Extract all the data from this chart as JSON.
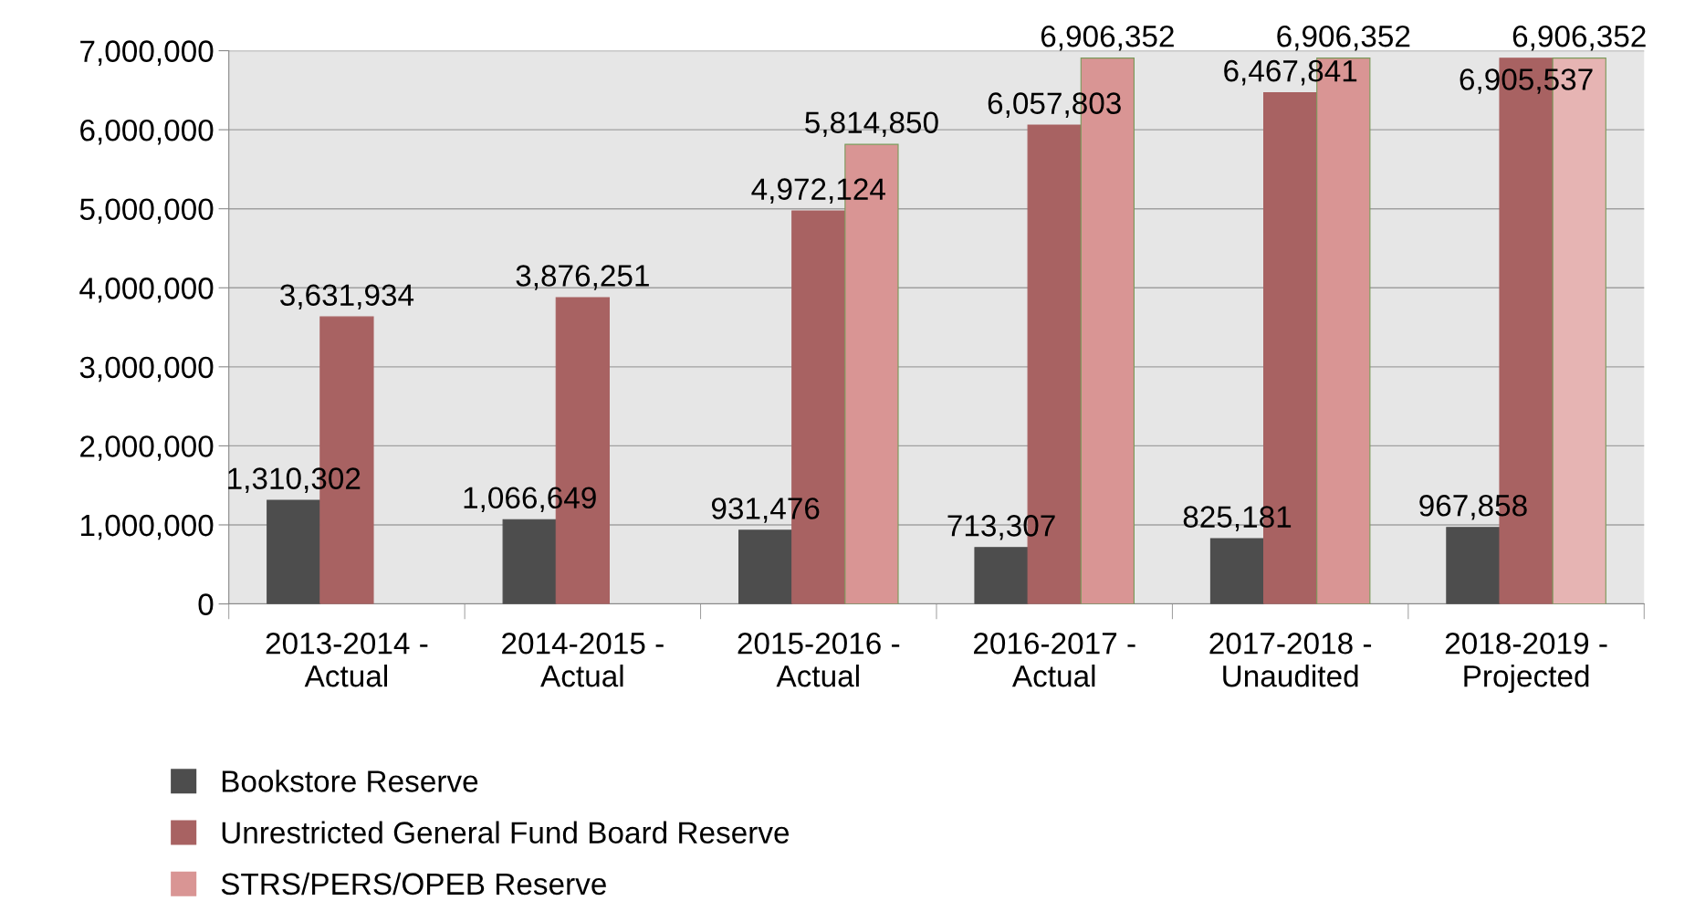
{
  "chart_data": {
    "type": "bar",
    "categories": [
      "2013-2014 -\nActual",
      "2014-2015 -\nActual",
      "2015-2016 -\nActual",
      "2016-2017 -\nActual",
      "2017-2018 -\nUnaudited",
      "2018-2019 -\nProjected"
    ],
    "series": [
      {
        "name": "Bookstore Reserve",
        "color": "#4d4d4d",
        "values": [
          1310302,
          1066649,
          931476,
          713307,
          825181,
          967858
        ],
        "value_labels": [
          "1,310,302",
          "1,066,649",
          "931,476",
          "713,307",
          "825,181",
          "967,858"
        ]
      },
      {
        "name": "Unrestricted General Fund Board Reserve",
        "color": "#a86262",
        "values": [
          3631934,
          3876251,
          4972124,
          6057803,
          6467841,
          6905537
        ],
        "value_labels": [
          "3,631,934",
          "3,876,251",
          "4,972,124",
          "6,057,803",
          "6,467,841",
          "6,905,537"
        ]
      },
      {
        "name": "STRS/PERS/OPEB Reserve",
        "color": "#d99594",
        "colors": [
          "#d99594",
          "#d99594",
          "#d99594",
          "#d99594",
          "#d99594",
          "#e6b4b3"
        ],
        "values": [
          null,
          null,
          5814850,
          6906352,
          6906352,
          6906352
        ],
        "value_labels": [
          null,
          null,
          "5,814,850",
          "6,906,352",
          "6,906,352",
          "6,906,352"
        ]
      }
    ],
    "ylim": [
      0,
      7000000
    ],
    "yticks": [
      0,
      {
        "value": 1000000,
        "label": "1,000,000"
      },
      {
        "value": 2000000,
        "label": "2,000,000"
      },
      {
        "value": 3000000,
        "label": "3,000,000"
      },
      {
        "value": 4000000,
        "label": "4,000,000"
      },
      {
        "value": 5000000,
        "label": "5,000,000"
      },
      {
        "value": 6000000,
        "label": "6,000,000"
      },
      {
        "value": 7000000,
        "label": "7,000,000"
      }
    ],
    "grid": "y",
    "legend": "bottom"
  }
}
